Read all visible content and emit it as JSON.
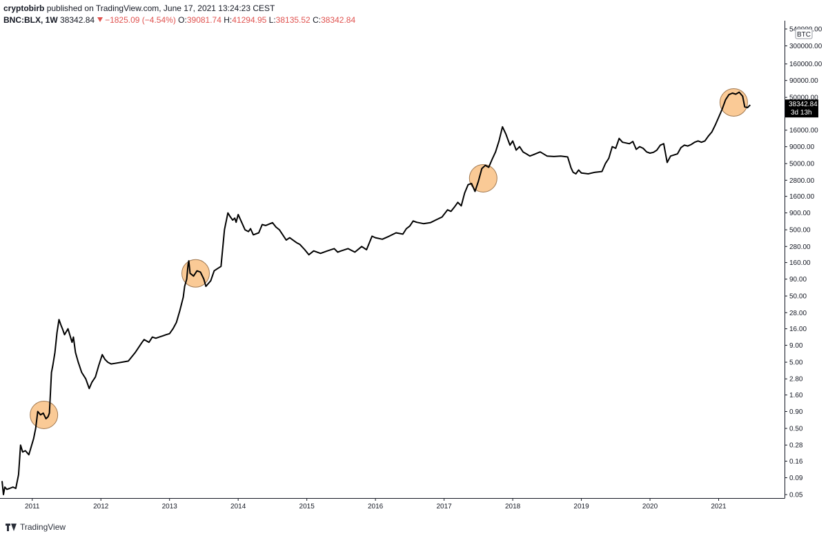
{
  "header": {
    "user": "cryptobirb",
    "published": "published on TradingView.com, June 17, 2021 13:24:23 CEST",
    "symbol": "BNC:BLX, 1W",
    "last": "38342.84",
    "change": "−1825.09 (−4.54%)",
    "o_label": "O:",
    "o_value": "39081.74",
    "h_label": "H:",
    "h_value": "41294.95",
    "l_label": "L:",
    "l_value": "38135.52",
    "c_label": "C:",
    "c_value": "38342.84"
  },
  "footer": {
    "brand": "TradingView"
  },
  "colors": {
    "line": "#000000",
    "highlight_fill": "#f9c48b",
    "highlight_stroke": "#a07850",
    "label_bg": "#000000",
    "negative": "#e0524f"
  },
  "chart_data": {
    "type": "line",
    "scale": "log",
    "currency_label": "BTC",
    "price_label": "38342.84",
    "countdown_label": "3d 13h",
    "x_ticks": [
      "2011",
      "2012",
      "2013",
      "2014",
      "2015",
      "2016",
      "2017",
      "2018",
      "2019",
      "2020",
      "2021"
    ],
    "y_ticks": [
      "540000.00",
      "300000.00",
      "160000.00",
      "90000.00",
      "50000.00",
      "28000.00",
      "16000.00",
      "9000.00",
      "5000.00",
      "2800.00",
      "1600.00",
      "900.00",
      "500.00",
      "280.00",
      "160.00",
      "90.00",
      "50.00",
      "28.00",
      "16.00",
      "9.00",
      "5.00",
      "2.80",
      "1.60",
      "0.90",
      "0.50",
      "0.28",
      "0.16",
      "0.09",
      "0.05"
    ],
    "ylim": [
      0.05,
      540000
    ],
    "xlim": [
      2010.53,
      2021.96
    ],
    "series": [
      {
        "x": [
          2010.56,
          2010.58,
          2010.6,
          2010.63,
          2010.67,
          2010.72,
          2010.76,
          2010.8,
          2010.83,
          2010.86,
          2010.9,
          2010.95,
          2011.0,
          2011.02,
          2011.05,
          2011.08,
          2011.12,
          2011.16,
          2011.2,
          2011.23,
          2011.25,
          2011.28,
          2011.3,
          2011.33,
          2011.36,
          2011.39,
          2011.42,
          2011.44,
          2011.47,
          2011.52,
          2011.58,
          2011.6,
          2011.63,
          2011.67,
          2011.72,
          2011.78,
          2011.83,
          2011.87,
          2011.92,
          2011.97,
          2012.02,
          2012.06,
          2012.1,
          2012.15,
          2012.2,
          2012.3,
          2012.4,
          2012.5,
          2012.6,
          2012.63,
          2012.7,
          2012.75,
          2012.8,
          2012.85,
          2012.9,
          2012.95,
          2013.0,
          2013.05,
          2013.1,
          2013.15,
          2013.2,
          2013.22,
          2013.25,
          2013.27,
          2013.28,
          2013.3,
          2013.35,
          2013.4,
          2013.45,
          2013.5,
          2013.53,
          2013.6,
          2013.65,
          2013.7,
          2013.75,
          2013.8,
          2013.85,
          2013.88,
          2013.92,
          2013.95,
          2013.97,
          2014.0,
          2014.05,
          2014.1,
          2014.15,
          2014.18,
          2014.22,
          2014.3,
          2014.35,
          2014.4,
          2014.5,
          2014.55,
          2014.6,
          2014.7,
          2014.75,
          2014.85,
          2014.9,
          2014.97,
          2015.03,
          2015.1,
          2015.2,
          2015.3,
          2015.4,
          2015.45,
          2015.5,
          2015.6,
          2015.7,
          2015.8,
          2015.87,
          2015.95,
          2016.0,
          2016.1,
          2016.2,
          2016.3,
          2016.4,
          2016.45,
          2016.5,
          2016.55,
          2016.6,
          2016.7,
          2016.8,
          2016.9,
          2016.97,
          2017.05,
          2017.1,
          2017.15,
          2017.2,
          2017.25,
          2017.3,
          2017.35,
          2017.4,
          2017.45,
          2017.5,
          2017.55,
          2017.6,
          2017.65,
          2017.7,
          2017.75,
          2017.8,
          2017.85,
          2017.9,
          2017.93,
          2017.96,
          2018.0,
          2018.05,
          2018.1,
          2018.15,
          2018.2,
          2018.25,
          2018.3,
          2018.4,
          2018.5,
          2018.6,
          2018.7,
          2018.8,
          2018.85,
          2018.88,
          2018.92,
          2018.96,
          2019.0,
          2019.1,
          2019.2,
          2019.3,
          2019.35,
          2019.4,
          2019.45,
          2019.5,
          2019.55,
          2019.6,
          2019.7,
          2019.75,
          2019.8,
          2019.85,
          2019.9,
          2019.95,
          2020.0,
          2020.05,
          2020.1,
          2020.15,
          2020.2,
          2020.25,
          2020.3,
          2020.4,
          2020.45,
          2020.5,
          2020.55,
          2020.6,
          2020.65,
          2020.7,
          2020.75,
          2020.8,
          2020.85,
          2020.9,
          2020.95,
          2021.0,
          2021.05,
          2021.1,
          2021.15,
          2021.2,
          2021.25,
          2021.3,
          2021.35,
          2021.38,
          2021.42,
          2021.46
        ],
        "y": [
          0.08,
          0.05,
          0.065,
          0.06,
          0.062,
          0.065,
          0.062,
          0.1,
          0.28,
          0.22,
          0.23,
          0.2,
          0.3,
          0.35,
          0.5,
          0.9,
          0.8,
          0.85,
          0.7,
          0.75,
          0.85,
          3.5,
          4.5,
          7,
          14,
          22,
          18,
          16,
          13,
          16,
          10,
          12,
          7,
          5,
          3.5,
          2.8,
          2,
          2.5,
          3,
          4.5,
          6.5,
          5.5,
          5,
          4.7,
          4.8,
          5,
          5.2,
          7,
          10,
          11,
          10,
          12,
          11.5,
          12,
          12.5,
          13,
          13.5,
          16,
          20,
          30,
          48,
          70,
          90,
          150,
          170,
          110,
          100,
          120,
          115,
          90,
          70,
          85,
          120,
          130,
          140,
          500,
          900,
          800,
          700,
          750,
          650,
          850,
          650,
          500,
          470,
          520,
          420,
          450,
          600,
          580,
          640,
          550,
          500,
          350,
          380,
          320,
          300,
          250,
          210,
          240,
          220,
          240,
          260,
          230,
          240,
          260,
          230,
          280,
          250,
          400,
          380,
          360,
          400,
          450,
          430,
          520,
          570,
          680,
          650,
          620,
          640,
          720,
          780,
          1000,
          950,
          1100,
          1300,
          1150,
          1800,
          2400,
          2500,
          1900,
          2700,
          4200,
          4700,
          4400,
          5800,
          7500,
          11000,
          18000,
          14000,
          11500,
          9500,
          11000,
          8000,
          9000,
          7500,
          7000,
          6500,
          6800,
          7500,
          6500,
          6400,
          6500,
          6300,
          4300,
          3700,
          3500,
          4000,
          3600,
          3500,
          3700,
          3800,
          5000,
          6000,
          9000,
          8500,
          12000,
          10500,
          10000,
          10800,
          8200,
          9000,
          8500,
          7500,
          7200,
          7400,
          8000,
          9500,
          10000,
          5200,
          6500,
          7000,
          8700,
          9500,
          9200,
          9700,
          10500,
          11000,
          10500,
          11000,
          13000,
          15000,
          19000,
          25000,
          33000,
          46000,
          55000,
          58000,
          56000,
          60000,
          52000,
          36000,
          35000,
          38342
        ]
      }
    ],
    "highlights": [
      {
        "x": 2011.17,
        "y": 0.8
      },
      {
        "x": 2013.38,
        "y": 110
      },
      {
        "x": 2017.57,
        "y": 3000
      },
      {
        "x": 2021.22,
        "y": 42000
      }
    ]
  }
}
